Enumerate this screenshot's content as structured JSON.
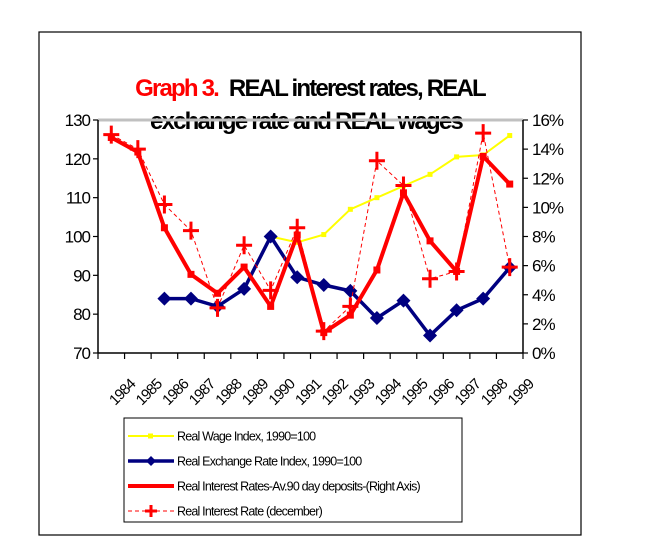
{
  "chart_data": {
    "type": "line",
    "title_prefix": "Graph 3.",
    "title_line1": "REAL interest rates, REAL",
    "title_line2": "exchange rate and REAL wages",
    "categories": [
      "1984",
      "1985",
      "1986",
      "1987",
      "1988",
      "1989",
      "1990",
      "1991",
      "1992",
      "1993",
      "1994",
      "1995",
      "1996",
      "1997",
      "1998",
      "1999"
    ],
    "left_axis": {
      "ylim": [
        70,
        130
      ],
      "ticks": [
        "70",
        "80",
        "90",
        "100",
        "110",
        "120",
        "130"
      ],
      "tick_values": [
        70,
        80,
        90,
        100,
        110,
        120,
        130
      ]
    },
    "right_axis": {
      "ylim": [
        0,
        16
      ],
      "ticks": [
        "0%",
        "2%",
        "4%",
        "6%",
        "8%",
        "10%",
        "12%",
        "14%",
        "16%"
      ],
      "tick_values": [
        0,
        2,
        4,
        6,
        8,
        10,
        12,
        14,
        16
      ]
    },
    "series": [
      {
        "name": "Real Wage Index, 1990=100",
        "axis": "left",
        "color": "#ffff00",
        "style": "thin-square",
        "values": [
          null,
          null,
          null,
          null,
          null,
          null,
          100,
          98.5,
          100.5,
          107,
          110,
          113,
          116,
          120.5,
          121,
          126
        ]
      },
      {
        "name": "Real Exchange Rate Index, 1990=100",
        "axis": "left",
        "color": "#000080",
        "style": "diamond",
        "values": [
          null,
          null,
          84,
          84,
          82,
          86.5,
          100,
          89.5,
          87.5,
          86,
          79,
          83.5,
          74.5,
          81,
          84,
          92
        ]
      },
      {
        "name": "Real Interest Rates-Av.90 day deposits-(Right Axis)",
        "axis": "right",
        "color": "#ff0000",
        "style": "thick-square",
        "values": [
          14.8,
          13.8,
          8.6,
          5.4,
          4.1,
          5.9,
          3.2,
          8.1,
          1.4,
          2.6,
          5.7,
          11.0,
          7.7,
          5.6,
          13.5,
          11.6
        ]
      },
      {
        "name": "Real Interest Rate (december)",
        "axis": "right",
        "color": "#ff0000",
        "style": "dashed-cross",
        "values": [
          15.0,
          14.0,
          10.2,
          8.4,
          3.1,
          7.4,
          4.3,
          8.6,
          1.5,
          3.2,
          13.2,
          11.5,
          5.1,
          5.6,
          15.1,
          5.9
        ]
      }
    ],
    "grid": false,
    "legend_position": "bottom"
  }
}
